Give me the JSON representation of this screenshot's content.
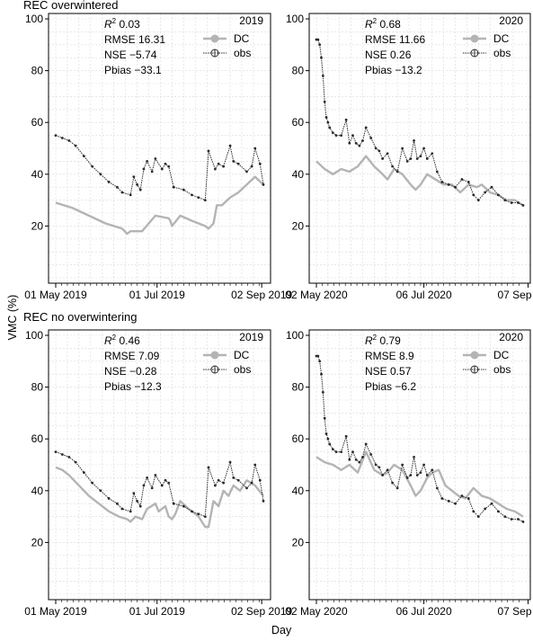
{
  "figure": {
    "section_titles": [
      "REC overwintered",
      "REC no overwintering"
    ],
    "ylabel": "VMC (%)",
    "xlabel": "Day"
  },
  "colors": {
    "dc": "#b4b4b4",
    "obs": "#2b2b2b",
    "grid": "#d9d9d9"
  },
  "chart_data": [
    {
      "type": "line",
      "panel": "REC overwintered 2019",
      "year_label": "2019",
      "stats": {
        "r2": "0.03",
        "rmse": "RMSE 16.31",
        "nse": "NSE −5.74",
        "pbias": "Pbias −33.1"
      },
      "x_range": [
        0,
        125
      ],
      "ylim": [
        0,
        100
      ],
      "grid": true,
      "legend_position": "top-right",
      "y_ticks": [
        20,
        40,
        60,
        80,
        100
      ],
      "x_ticks": [
        {
          "pos": 0,
          "label": "01 May 2019"
        },
        {
          "pos": 61,
          "label": "01 Jul 2019"
        },
        {
          "pos": 124,
          "label": "02 Sep 2019"
        }
      ],
      "series": [
        {
          "name": "DC",
          "x": [
            0,
            10,
            20,
            30,
            40,
            43,
            45,
            52,
            60,
            68,
            69,
            70,
            75,
            82,
            86,
            90,
            92,
            95,
            97,
            100,
            105,
            110,
            120,
            125
          ],
          "y": [
            29,
            27,
            24,
            21,
            19,
            17,
            18,
            18,
            24,
            23,
            22,
            20,
            24,
            22,
            21,
            20,
            19,
            21,
            28,
            28,
            31,
            33,
            39,
            36
          ]
        },
        {
          "name": "obs",
          "x": [
            0,
            4,
            8,
            12,
            17,
            22,
            27,
            32,
            37,
            40,
            45,
            47,
            49,
            51,
            53,
            55,
            58,
            60,
            64,
            66,
            68,
            71,
            77,
            82,
            86,
            90,
            92,
            96,
            98,
            101,
            105,
            107,
            110,
            115,
            118,
            120,
            123,
            125
          ],
          "y": [
            55,
            54,
            53,
            51,
            47,
            43,
            40,
            37,
            35,
            33,
            32,
            39,
            36,
            34,
            42,
            45,
            41,
            46,
            42,
            44,
            43,
            35,
            34,
            32,
            31,
            30,
            49,
            42,
            44,
            43,
            51,
            45,
            44,
            41,
            43,
            50,
            44,
            36
          ]
        }
      ]
    },
    {
      "type": "line",
      "panel": "REC overwintered 2020",
      "year_label": "2020",
      "stats": {
        "r2": "0.68",
        "rmse": "RMSE 11.66",
        "nse": "NSE 0.26",
        "pbias": "Pbias −13.2"
      },
      "x_range": [
        0,
        125
      ],
      "ylim": [
        0,
        100
      ],
      "grid": true,
      "legend_position": "top-right",
      "y_ticks": [
        20,
        40,
        60,
        80,
        100
      ],
      "x_ticks": [
        {
          "pos": 0,
          "label": "02 May 2020"
        },
        {
          "pos": 65,
          "label": "06 Jul 2020"
        },
        {
          "pos": 128,
          "label": "07 Sep 2020"
        }
      ],
      "series": [
        {
          "name": "DC",
          "x": [
            0,
            5,
            10,
            15,
            20,
            25,
            30,
            35,
            40,
            43,
            47,
            52,
            57,
            60,
            63,
            67,
            72,
            77,
            82,
            87,
            92,
            97,
            100,
            105,
            110,
            115,
            120,
            125
          ],
          "y": [
            45,
            42,
            40,
            42,
            41,
            43,
            47,
            43,
            40,
            38,
            42,
            40,
            36,
            34,
            36,
            40,
            38,
            36,
            36,
            33,
            36,
            35,
            36,
            33,
            32,
            30,
            30,
            28
          ]
        },
        {
          "name": "obs",
          "x": [
            0,
            1,
            2,
            3,
            4,
            5,
            6,
            7,
            8,
            10,
            12,
            15,
            18,
            20,
            22,
            24,
            26,
            28,
            30,
            33,
            36,
            38,
            40,
            43,
            46,
            49,
            52,
            55,
            57,
            59,
            61,
            63,
            65,
            67,
            70,
            73,
            76,
            80,
            84,
            88,
            92,
            95,
            98,
            102,
            106,
            110,
            114,
            118,
            122,
            125
          ],
          "y": [
            92,
            92,
            90,
            85,
            78,
            68,
            62,
            60,
            58,
            56,
            55,
            55,
            61,
            52,
            55,
            52,
            51,
            53,
            58,
            54,
            50,
            49,
            46,
            48,
            43,
            41,
            50,
            45,
            46,
            53,
            46,
            47,
            50,
            46,
            48,
            41,
            37,
            36,
            35,
            38,
            37,
            32,
            30,
            33,
            35,
            32,
            30,
            29,
            29,
            28
          ]
        }
      ]
    },
    {
      "type": "line",
      "panel": "REC no overwintering 2019",
      "year_label": "2019",
      "stats": {
        "r2": "0.46",
        "rmse": "RMSE 7.09",
        "nse": "NSE −0.28",
        "pbias": "Pbias −12.3"
      },
      "x_range": [
        0,
        125
      ],
      "ylim": [
        0,
        100
      ],
      "grid": true,
      "legend_position": "top-right",
      "y_ticks": [
        20,
        40,
        60,
        80,
        100
      ],
      "x_ticks": [
        {
          "pos": 0,
          "label": "01 May 2019"
        },
        {
          "pos": 61,
          "label": "01 Jul 2019"
        },
        {
          "pos": 124,
          "label": "02 Sep 2019"
        }
      ],
      "series": [
        {
          "name": "DC",
          "x": [
            0,
            4,
            8,
            14,
            20,
            26,
            32,
            38,
            43,
            45,
            48,
            52,
            55,
            60,
            62,
            66,
            68,
            70,
            72,
            75,
            80,
            86,
            90,
            92,
            95,
            98,
            101,
            104,
            107,
            111,
            115,
            120,
            125
          ],
          "y": [
            49,
            48,
            46,
            42,
            38,
            35,
            32,
            30,
            29,
            28,
            30,
            29,
            33,
            35,
            32,
            34,
            30,
            29,
            31,
            36,
            33,
            30,
            26,
            26,
            36,
            34,
            40,
            38,
            42,
            40,
            44,
            42,
            38
          ]
        },
        {
          "name": "obs",
          "x": [
            0,
            4,
            8,
            12,
            17,
            22,
            27,
            32,
            37,
            40,
            45,
            47,
            49,
            51,
            53,
            55,
            58,
            60,
            64,
            66,
            68,
            71,
            77,
            82,
            86,
            90,
            92,
            96,
            98,
            101,
            105,
            107,
            110,
            115,
            118,
            120,
            123,
            125
          ],
          "y": [
            55,
            54,
            53,
            51,
            47,
            43,
            40,
            37,
            35,
            33,
            32,
            39,
            36,
            34,
            42,
            45,
            41,
            46,
            42,
            44,
            43,
            35,
            34,
            32,
            31,
            30,
            49,
            42,
            44,
            43,
            51,
            45,
            44,
            41,
            43,
            50,
            44,
            36
          ]
        }
      ]
    },
    {
      "type": "line",
      "panel": "REC no overwintering 2020",
      "year_label": "2020",
      "stats": {
        "r2": "0.79",
        "rmse": "RMSE 8.9",
        "nse": "NSE 0.57",
        "pbias": "Pbias −6.2"
      },
      "x_range": [
        0,
        125
      ],
      "ylim": [
        0,
        100
      ],
      "grid": true,
      "legend_position": "top-right",
      "y_ticks": [
        20,
        40,
        60,
        80,
        100
      ],
      "x_ticks": [
        {
          "pos": 0,
          "label": "02 May 2020"
        },
        {
          "pos": 65,
          "label": "06 Jul 2020"
        },
        {
          "pos": 128,
          "label": "07 Sep 2020"
        }
      ],
      "series": [
        {
          "name": "DC",
          "x": [
            0,
            5,
            10,
            15,
            20,
            25,
            30,
            35,
            40,
            43,
            47,
            52,
            57,
            60,
            63,
            67,
            70,
            74,
            78,
            82,
            86,
            90,
            95,
            100,
            105,
            110,
            115,
            120,
            125
          ],
          "y": [
            53,
            51,
            50,
            48,
            50,
            47,
            55,
            48,
            46,
            47,
            50,
            48,
            42,
            38,
            40,
            45,
            47,
            48,
            42,
            40,
            38,
            37,
            41,
            38,
            37,
            35,
            33,
            32,
            30
          ]
        },
        {
          "name": "obs",
          "x": [
            0,
            1,
            2,
            3,
            4,
            5,
            6,
            7,
            8,
            10,
            12,
            15,
            18,
            20,
            22,
            24,
            26,
            28,
            30,
            33,
            36,
            38,
            40,
            43,
            46,
            49,
            52,
            55,
            57,
            59,
            61,
            63,
            65,
            67,
            70,
            73,
            76,
            80,
            84,
            88,
            92,
            95,
            98,
            102,
            106,
            110,
            114,
            118,
            122,
            125
          ],
          "y": [
            92,
            92,
            90,
            85,
            78,
            68,
            62,
            60,
            58,
            56,
            55,
            55,
            61,
            52,
            55,
            52,
            51,
            53,
            58,
            54,
            50,
            49,
            46,
            48,
            43,
            41,
            50,
            45,
            46,
            53,
            46,
            47,
            50,
            46,
            48,
            41,
            37,
            36,
            35,
            38,
            37,
            32,
            30,
            33,
            35,
            32,
            30,
            29,
            29,
            28
          ]
        }
      ]
    }
  ]
}
